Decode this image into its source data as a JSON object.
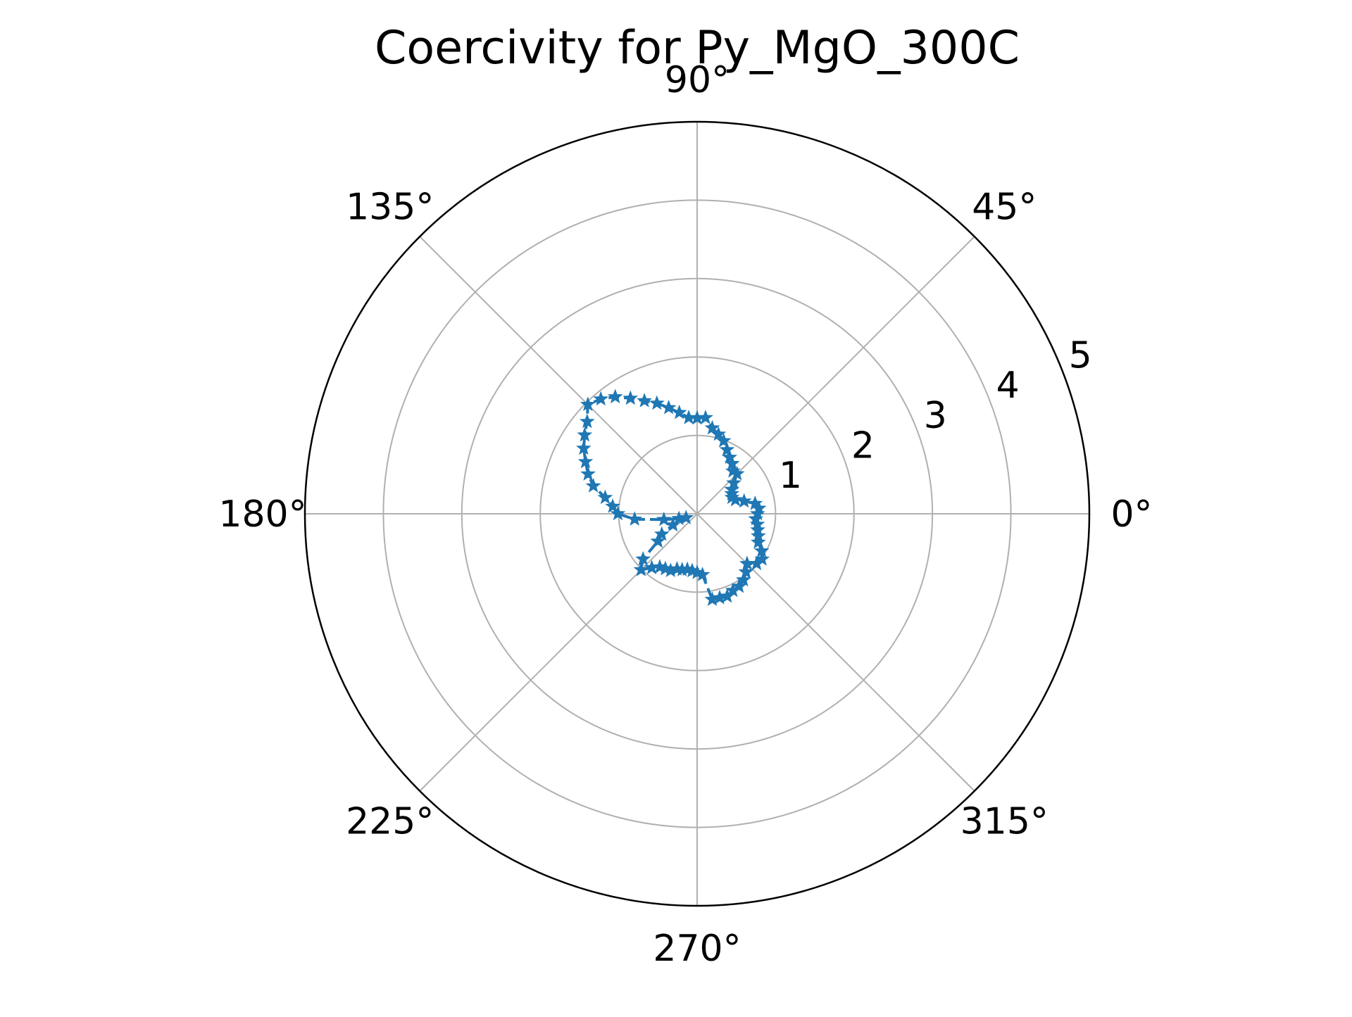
{
  "chart_data": {
    "type": "polar-line",
    "title": "Coercivity for Py_MgO_300C",
    "angle_unit": "degrees",
    "angle_ticks": [
      {
        "value": 0,
        "label": "0°"
      },
      {
        "value": 45,
        "label": "45°"
      },
      {
        "value": 90,
        "label": "90°"
      },
      {
        "value": 135,
        "label": "135°"
      },
      {
        "value": 180,
        "label": "180°"
      },
      {
        "value": 225,
        "label": "225°"
      },
      {
        "value": 270,
        "label": "270°"
      },
      {
        "value": 315,
        "label": "315°"
      }
    ],
    "radial_ticks": [
      {
        "value": 1,
        "label": "1"
      },
      {
        "value": 2,
        "label": "2"
      },
      {
        "value": 3,
        "label": "3"
      },
      {
        "value": 4,
        "label": "4"
      },
      {
        "value": 5,
        "label": "5"
      }
    ],
    "rlim": [
      0,
      5
    ],
    "radial_label_angle": 22.5,
    "grid": true,
    "series": [
      {
        "color": "#1f77b4",
        "line_style": "dashed",
        "marker": "star",
        "theta": [
          0,
          5,
          10,
          15,
          20,
          25,
          30,
          35,
          40,
          45,
          50,
          55,
          60,
          65,
          70,
          75,
          80,
          85,
          90,
          95,
          100,
          105,
          110,
          115,
          120,
          125,
          130,
          135,
          140,
          145,
          150,
          155,
          160,
          165,
          170,
          175,
          180,
          185,
          190,
          195,
          200,
          205,
          210,
          215,
          220,
          225,
          230,
          235,
          240,
          245,
          250,
          255,
          260,
          265,
          270,
          275,
          280,
          285,
          290,
          295,
          300,
          305,
          310,
          315,
          320,
          325,
          330,
          335,
          340,
          345,
          350,
          355
        ],
        "r": [
          0.77,
          0.79,
          0.75,
          0.62,
          0.52,
          0.49,
          0.51,
          0.54,
          0.61,
          0.72,
          0.71,
          0.78,
          0.83,
          0.9,
          0.99,
          1.05,
          1.11,
          1.23,
          1.22,
          1.23,
          1.31,
          1.4,
          1.5,
          1.59,
          1.7,
          1.82,
          1.91,
          1.97,
          1.83,
          1.75,
          1.67,
          1.57,
          1.48,
          1.37,
          1.19,
          1.08,
          1.01,
          0.8,
          0.43,
          0.24,
          0.15,
          0.34,
          0.52,
          0.61,
          0.9,
          1.01,
          0.9,
          0.83,
          0.81,
          0.8,
          0.75,
          0.74,
          0.72,
          0.73,
          0.75,
          0.78,
          1.11,
          1.11,
          1.12,
          1.08,
          1.07,
          1.03,
          0.97,
          0.9,
          0.99,
          1.01,
          0.95,
          0.86,
          0.83,
          0.8,
          0.78,
          0.75
        ]
      }
    ]
  }
}
